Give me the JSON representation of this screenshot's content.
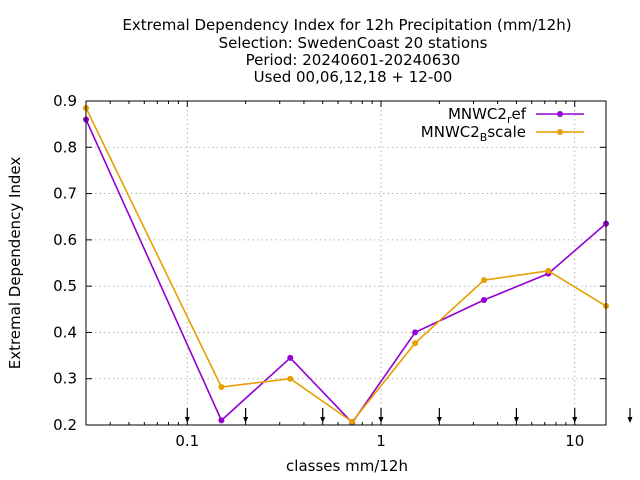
{
  "chart_data": {
    "type": "line",
    "title_lines": [
      "Extremal Dependency Index  for 12h Precipitation (mm/12h)",
      "Selection: SwedenCoast      20 stations",
      "Period: 20240601-20240630",
      "Used 00,06,12,18 + 12-00"
    ],
    "xlabel": "classes mm/12h",
    "ylabel": "Extremal Dependency Index",
    "x_scale": "log",
    "xlim": [
      0.03,
      14.5
    ],
    "ylim": [
      0.2,
      0.9
    ],
    "x_ticks": [
      0.1,
      1,
      10
    ],
    "x_tick_labels": [
      "0.1",
      "1",
      "10"
    ],
    "y_ticks": [
      0.2,
      0.3,
      0.4,
      0.5,
      0.6,
      0.7,
      0.8,
      0.9
    ],
    "y_tick_labels": [
      "0.2",
      "0.3",
      "0.4",
      "0.5",
      "0.6",
      "0.7",
      "0.8",
      "0.9"
    ],
    "grid": true,
    "legend_position": "top-right",
    "class_markers": [
      0.1,
      0.2,
      0.5,
      1,
      2,
      5,
      10,
      20
    ],
    "series": [
      {
        "name": "MNWC2_ref",
        "legend_base": "MNWC2",
        "legend_sub": "r",
        "legend_rest": "ef",
        "color": "#9400d3",
        "x": [
          0.03,
          0.15,
          0.34,
          0.71,
          1.5,
          3.4,
          7.3,
          14.5
        ],
        "y": [
          0.86,
          0.21,
          0.345,
          0.205,
          0.4,
          0.47,
          0.527,
          0.635
        ]
      },
      {
        "name": "MNWC2_Bscale",
        "legend_base": "MNWC2",
        "legend_sub": "B",
        "legend_rest": "scale",
        "color": "#e69f00",
        "x": [
          0.03,
          0.15,
          0.34,
          0.71,
          1.5,
          3.4,
          7.3,
          14.5
        ],
        "y": [
          0.885,
          0.282,
          0.3,
          0.207,
          0.377,
          0.513,
          0.533,
          0.457
        ]
      }
    ]
  }
}
